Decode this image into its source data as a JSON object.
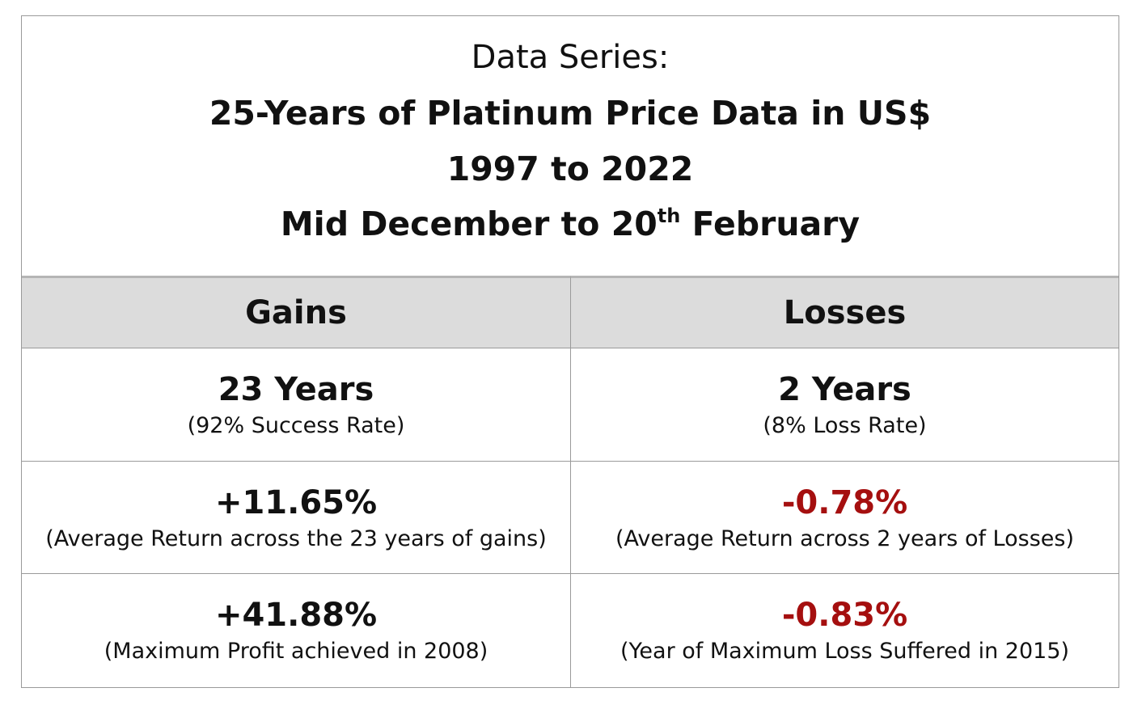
{
  "header": {
    "line1": "Data Series:",
    "line2": "25-Years of Platinum Price Data in US$",
    "line3": "1997 to 2022",
    "line4": {
      "before": "Mid December to 20",
      "sup": "th",
      "after": "February"
    }
  },
  "table": {
    "columns": [
      "Gains",
      "Losses"
    ],
    "rows": [
      [
        {
          "main": "23 Years",
          "note": "(92% Success Rate)"
        },
        {
          "main": "2 Years",
          "note": "(8% Loss Rate)"
        }
      ],
      [
        {
          "main": "+11.65%",
          "note": "(Average Return across the 23 years of gains)"
        },
        {
          "main": "-0.78%",
          "note": "(Average Return across 2 years of Losses)"
        }
      ],
      [
        {
          "main": "+41.88%",
          "note": "(Maximum Profit achieved in 2008)"
        },
        {
          "main": "-0.83%",
          "note": "(Year of Maximum Loss Suffered in 2015)"
        }
      ]
    ]
  }
}
